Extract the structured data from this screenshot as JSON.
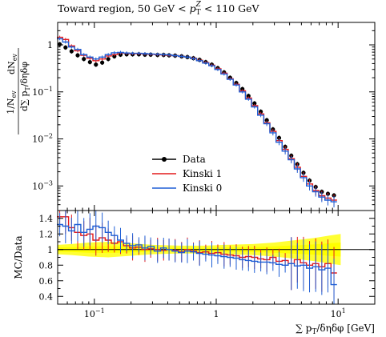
{
  "title": "Toward region, 50 GeV < pT^Z < 110 GeV",
  "title_parts": {
    "prefix": "Toward region, 50 GeV < ",
    "var": "p",
    "sub": "T",
    "sup": "Z",
    "suffix": " < 110 GeV"
  },
  "x_axis_label": "∑ pT/δηδφ [GeV]",
  "x_axis_parts": {
    "prefix": "∑ p",
    "sub": "T",
    "suffix": "/δηδφ [GeV]"
  },
  "upper_y_label": "1/N_ev dN_ev / d∑pT/δηδφ",
  "lower_y_label": "MC/Data",
  "colors": {
    "data": "#000000",
    "kinski1": "#e41a1c",
    "kinski0": "#1f5fd6",
    "band_outer": "#ffff33",
    "band_inner": "#ffff00"
  },
  "chart_data": [
    {
      "type": "line",
      "panel": "main",
      "xscale": "log",
      "yscale": "log",
      "xlim": [
        0.05,
        20
      ],
      "ylim": [
        0.0003,
        3
      ],
      "x_ticks": [
        {
          "v": 0.1,
          "label": "10^-1"
        },
        {
          "v": 1,
          "label": "1"
        },
        {
          "v": 10,
          "label": "10^1"
        }
      ],
      "y_ticks": [
        {
          "v": 1,
          "label": "1"
        },
        {
          "v": 0.1,
          "label": "10^-1"
        },
        {
          "v": 0.01,
          "label": "10^-2"
        },
        {
          "v": 0.001,
          "label": "10^-3"
        }
      ],
      "legend_position": "lower-left",
      "series": [
        {
          "name": "Data",
          "style": "markers",
          "x": [
            0.052,
            0.058,
            0.065,
            0.073,
            0.082,
            0.092,
            0.103,
            0.116,
            0.13,
            0.146,
            0.164,
            0.184,
            0.206,
            0.232,
            0.26,
            0.29,
            0.33,
            0.37,
            0.41,
            0.46,
            0.52,
            0.58,
            0.65,
            0.73,
            0.82,
            0.92,
            1.03,
            1.16,
            1.3,
            1.46,
            1.64,
            1.84,
            2.06,
            2.32,
            2.6,
            2.92,
            3.28,
            3.68,
            4.13,
            4.63,
            5.2,
            5.83,
            6.55,
            7.35,
            8.25,
            9.25
          ],
          "y": [
            1.03,
            0.88,
            0.73,
            0.6,
            0.5,
            0.43,
            0.38,
            0.42,
            0.5,
            0.57,
            0.62,
            0.63,
            0.63,
            0.63,
            0.62,
            0.62,
            0.61,
            0.61,
            0.6,
            0.59,
            0.57,
            0.55,
            0.52,
            0.48,
            0.43,
            0.38,
            0.32,
            0.26,
            0.2,
            0.155,
            0.115,
            0.082,
            0.057,
            0.038,
            0.025,
            0.016,
            0.0105,
            0.0068,
            0.0044,
            0.0029,
            0.0019,
            0.0013,
            0.00095,
            0.00075,
            0.00068,
            0.00063
          ]
        },
        {
          "name": "Kinski 1",
          "style": "step",
          "x": [
            0.052,
            0.058,
            0.065,
            0.073,
            0.082,
            0.092,
            0.103,
            0.116,
            0.13,
            0.146,
            0.164,
            0.184,
            0.206,
            0.232,
            0.26,
            0.29,
            0.33,
            0.37,
            0.41,
            0.46,
            0.52,
            0.58,
            0.65,
            0.73,
            0.82,
            0.92,
            1.03,
            1.16,
            1.3,
            1.46,
            1.64,
            1.84,
            2.06,
            2.32,
            2.6,
            2.92,
            3.28,
            3.68,
            4.13,
            4.63,
            5.2,
            5.83,
            6.55,
            7.35,
            8.25,
            9.25
          ],
          "y": [
            1.45,
            1.3,
            0.95,
            0.75,
            0.6,
            0.52,
            0.46,
            0.5,
            0.58,
            0.62,
            0.67,
            0.66,
            0.65,
            0.65,
            0.64,
            0.63,
            0.62,
            0.61,
            0.6,
            0.59,
            0.57,
            0.55,
            0.52,
            0.47,
            0.42,
            0.37,
            0.31,
            0.25,
            0.19,
            0.145,
            0.105,
            0.074,
            0.051,
            0.034,
            0.022,
            0.0145,
            0.0092,
            0.006,
            0.0038,
            0.0025,
            0.0016,
            0.0011,
            0.0008,
            0.00062,
            0.00055,
            0.0005
          ]
        },
        {
          "name": "Kinski 0",
          "style": "step",
          "x": [
            0.052,
            0.058,
            0.065,
            0.073,
            0.082,
            0.092,
            0.103,
            0.116,
            0.13,
            0.146,
            0.164,
            0.184,
            0.206,
            0.232,
            0.26,
            0.29,
            0.33,
            0.37,
            0.41,
            0.46,
            0.52,
            0.58,
            0.65,
            0.73,
            0.82,
            0.92,
            1.03,
            1.16,
            1.3,
            1.46,
            1.64,
            1.84,
            2.06,
            2.32,
            2.6,
            2.92,
            3.28,
            3.68,
            4.13,
            4.63,
            5.2,
            5.83,
            6.55,
            7.35,
            8.25,
            9.25
          ],
          "y": [
            1.35,
            1.15,
            0.9,
            0.8,
            0.62,
            0.55,
            0.5,
            0.55,
            0.62,
            0.68,
            0.69,
            0.67,
            0.66,
            0.66,
            0.65,
            0.64,
            0.63,
            0.62,
            0.61,
            0.59,
            0.57,
            0.55,
            0.51,
            0.46,
            0.41,
            0.36,
            0.3,
            0.24,
            0.185,
            0.14,
            0.1,
            0.07,
            0.048,
            0.032,
            0.021,
            0.0135,
            0.0085,
            0.0055,
            0.0036,
            0.0023,
            0.0015,
            0.001,
            0.00075,
            0.00058,
            0.0005,
            0.00046
          ]
        }
      ]
    },
    {
      "type": "line",
      "panel": "ratio",
      "xscale": "log",
      "xlim": [
        0.05,
        20
      ],
      "ylim": [
        0.3,
        1.5
      ],
      "y_ticks": [
        {
          "v": 0.4,
          "label": "0.4"
        },
        {
          "v": 0.6,
          "label": "0.6"
        },
        {
          "v": 0.8,
          "label": "0.8"
        },
        {
          "v": 1.0,
          "label": "1"
        },
        {
          "v": 1.2,
          "label": "1.2"
        },
        {
          "v": 1.4,
          "label": "1.4"
        }
      ],
      "x_ticks": [
        {
          "v": 0.1,
          "label": "10^-1"
        },
        {
          "v": 1,
          "label": "1"
        },
        {
          "v": 10,
          "label": "10^1"
        }
      ],
      "band": {
        "x": [
          0.05,
          0.065,
          0.09,
          0.13,
          0.2,
          0.3,
          0.5,
          0.8,
          1.2,
          2.0,
          3.0,
          4.5,
          6.5,
          8.5,
          10.5
        ],
        "low": [
          0.94,
          0.93,
          0.91,
          0.9,
          0.92,
          0.94,
          0.95,
          0.95,
          0.94,
          0.93,
          0.91,
          0.88,
          0.85,
          0.82,
          0.8
        ],
        "high": [
          1.06,
          1.07,
          1.09,
          1.1,
          1.08,
          1.06,
          1.05,
          1.05,
          1.06,
          1.07,
          1.09,
          1.12,
          1.15,
          1.18,
          1.2
        ]
      },
      "series": [
        {
          "name": "Kinski 1",
          "x": [
            0.052,
            0.058,
            0.065,
            0.073,
            0.082,
            0.092,
            0.103,
            0.116,
            0.13,
            0.146,
            0.164,
            0.184,
            0.206,
            0.232,
            0.26,
            0.29,
            0.33,
            0.37,
            0.41,
            0.46,
            0.52,
            0.58,
            0.65,
            0.73,
            0.82,
            0.92,
            1.03,
            1.16,
            1.3,
            1.46,
            1.64,
            1.84,
            2.06,
            2.32,
            2.6,
            2.92,
            3.28,
            3.68,
            4.13,
            4.63,
            5.2,
            5.83,
            6.55,
            7.35,
            8.25,
            9.25
          ],
          "y": [
            1.42,
            1.42,
            1.28,
            1.22,
            1.18,
            1.2,
            1.12,
            1.15,
            1.12,
            1.08,
            1.1,
            1.05,
            1.02,
            1.03,
            1.0,
            1.01,
            1.0,
            0.99,
            1.0,
            0.99,
            0.97,
            1.0,
            0.98,
            0.96,
            0.97,
            0.95,
            0.96,
            0.94,
            0.93,
            0.92,
            0.9,
            0.91,
            0.9,
            0.88,
            0.87,
            0.9,
            0.85,
            0.86,
            0.82,
            0.87,
            0.83,
            0.8,
            0.82,
            0.78,
            0.82,
            0.7
          ]
        },
        {
          "name": "Kinski 0",
          "x": [
            0.052,
            0.058,
            0.065,
            0.073,
            0.082,
            0.092,
            0.103,
            0.116,
            0.13,
            0.146,
            0.164,
            0.184,
            0.206,
            0.232,
            0.26,
            0.29,
            0.33,
            0.37,
            0.41,
            0.46,
            0.52,
            0.58,
            0.65,
            0.73,
            0.82,
            0.92,
            1.03,
            1.16,
            1.3,
            1.46,
            1.64,
            1.84,
            2.06,
            2.32,
            2.6,
            2.92,
            3.28,
            3.68,
            4.13,
            4.63,
            5.2,
            5.83,
            6.55,
            7.35,
            8.25,
            9.25
          ],
          "y": [
            1.32,
            1.3,
            1.24,
            1.32,
            1.22,
            1.26,
            1.3,
            1.28,
            1.22,
            1.18,
            1.12,
            1.08,
            1.05,
            1.06,
            1.02,
            1.04,
            0.98,
            1.02,
            1.0,
            0.98,
            0.96,
            0.98,
            0.97,
            0.95,
            0.94,
            0.93,
            0.92,
            0.91,
            0.9,
            0.89,
            0.87,
            0.86,
            0.85,
            0.84,
            0.84,
            0.83,
            0.81,
            0.8,
            0.82,
            0.79,
            0.8,
            0.76,
            0.78,
            0.74,
            0.76,
            0.55
          ]
        }
      ]
    }
  ],
  "legend": [
    {
      "name": "Data",
      "key": "data"
    },
    {
      "name": "Kinski 1",
      "key": "kinski1"
    },
    {
      "name": "Kinski 0",
      "key": "kinski0"
    }
  ]
}
